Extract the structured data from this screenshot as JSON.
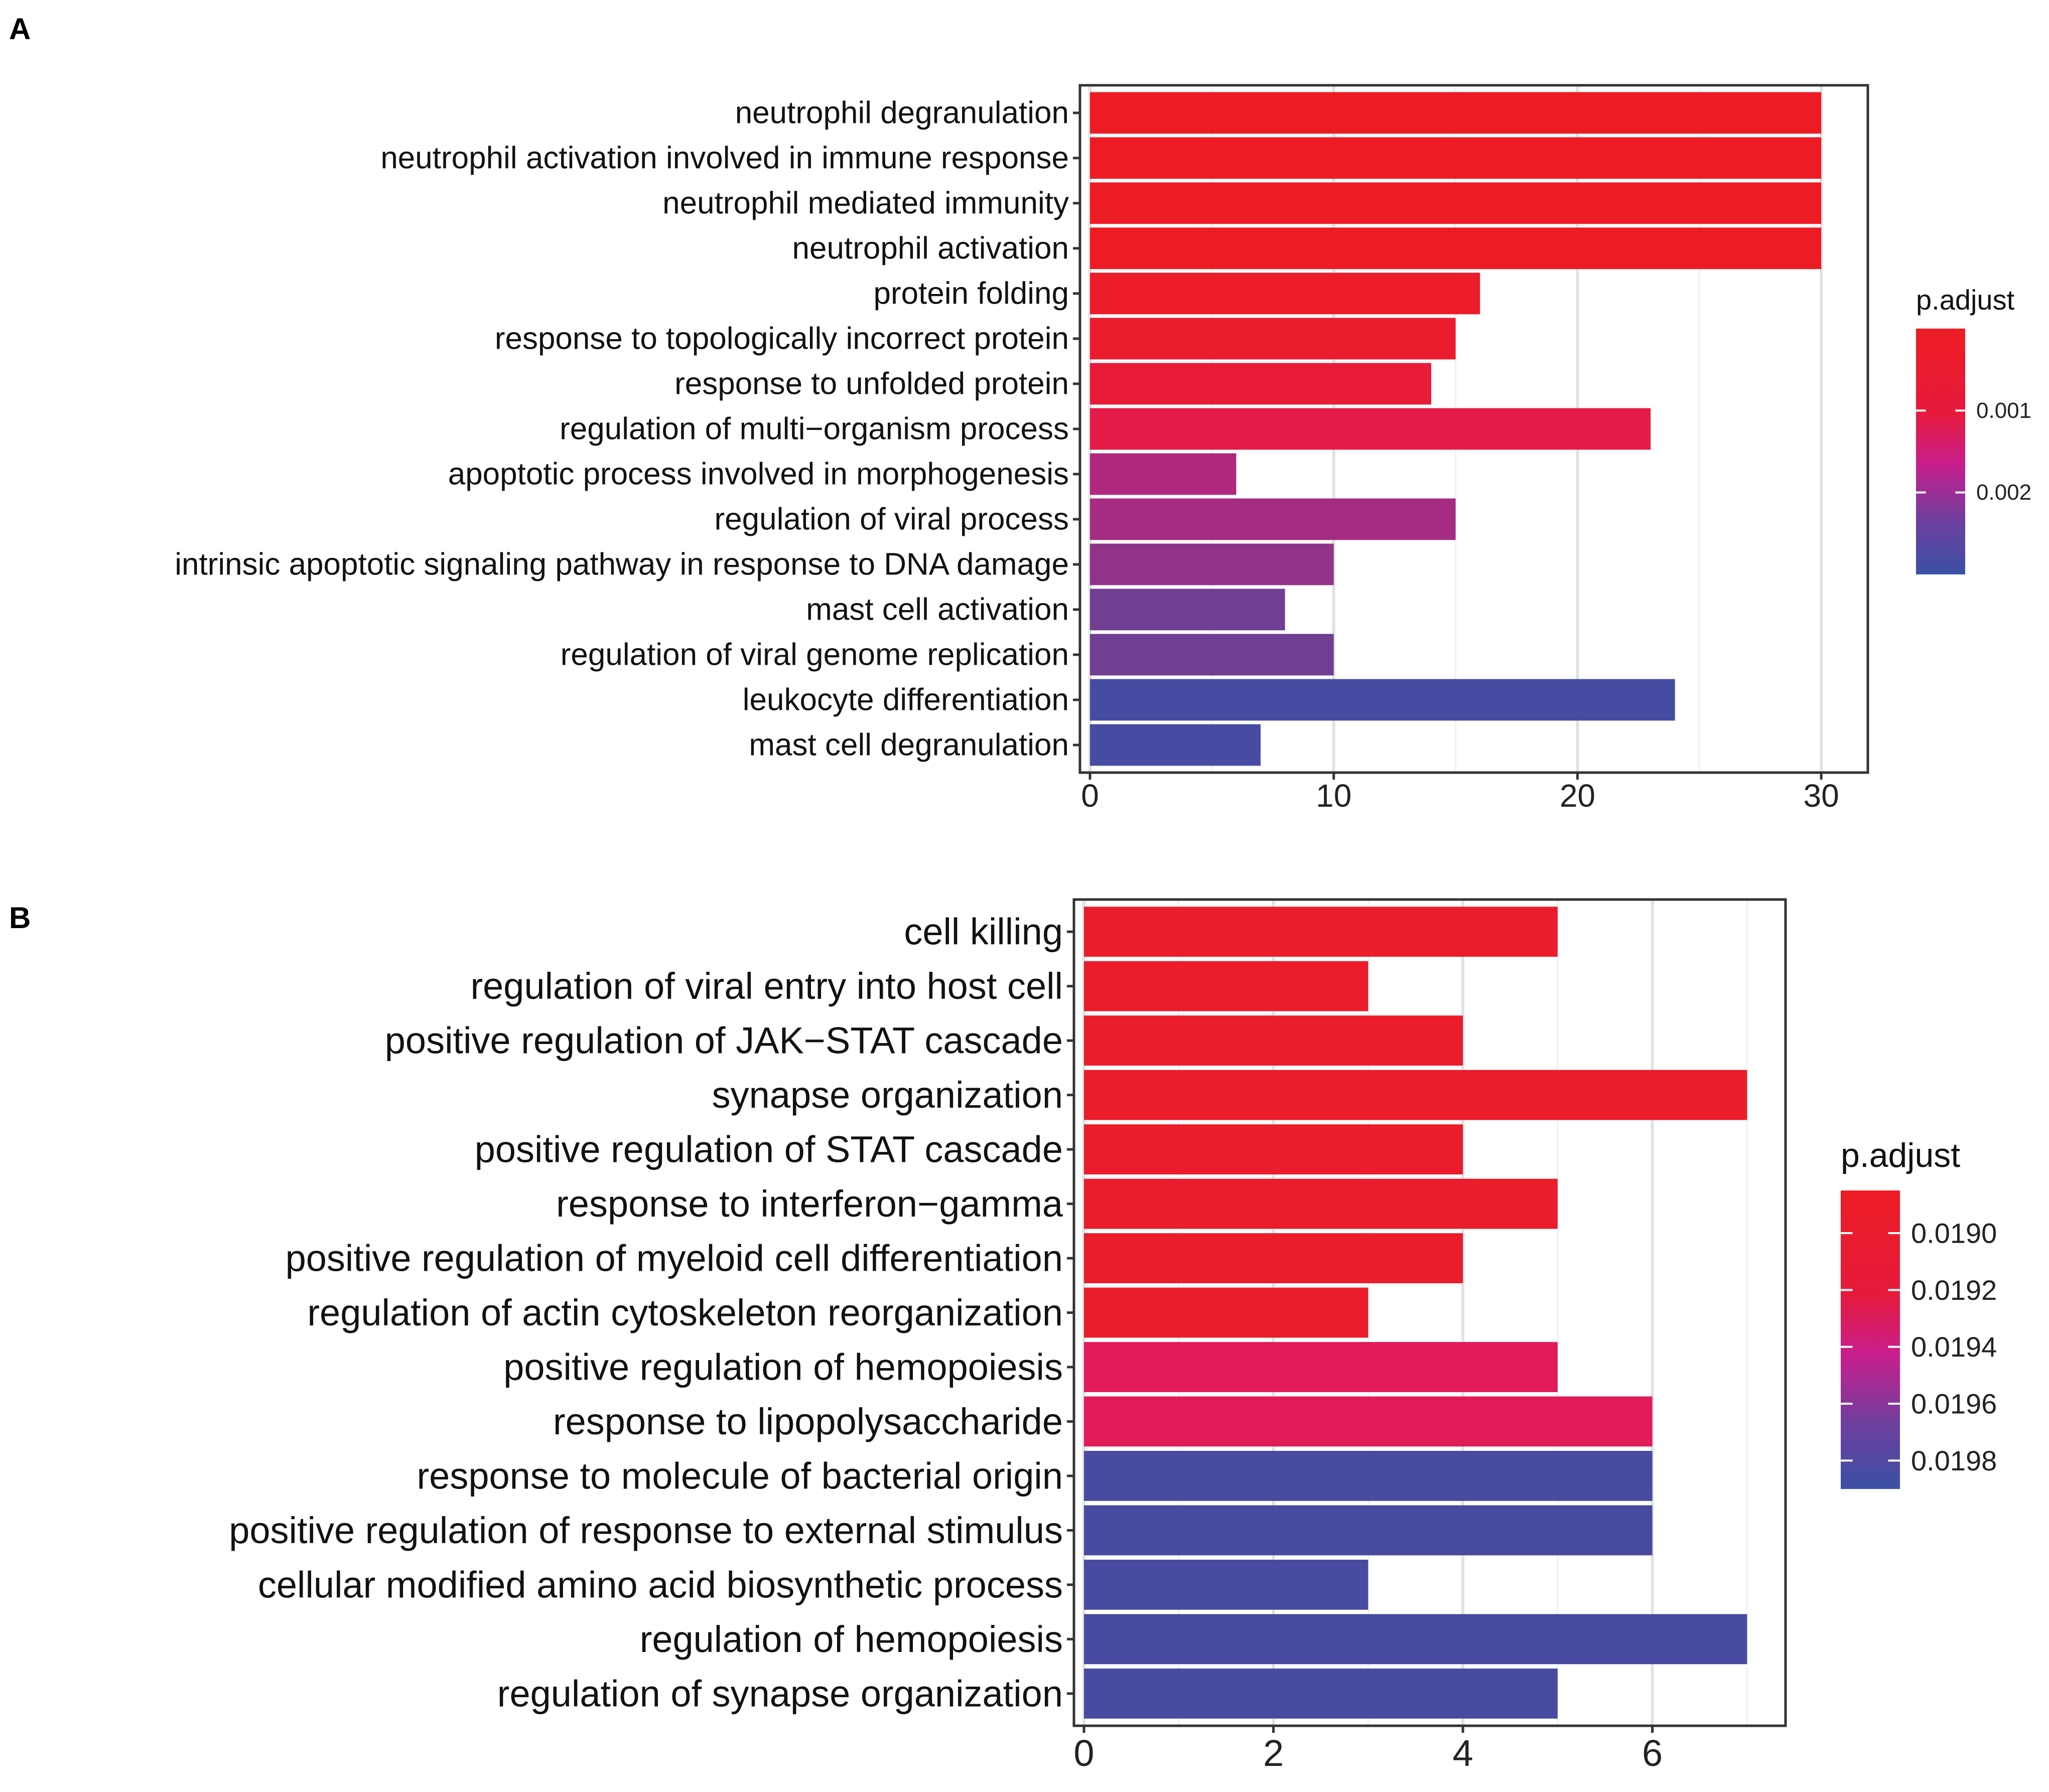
{
  "chart_data": [
    {
      "panel": "A",
      "type": "bar",
      "orientation": "horizontal",
      "categories": [
        "neutrophil degranulation",
        "neutrophil activation involved in immune response",
        "neutrophil mediated immunity",
        "neutrophil activation",
        "protein folding",
        "response to topologically incorrect protein",
        "response to unfolded protein",
        "regulation of multi−organism process",
        "apoptotic process involved in morphogenesis",
        "regulation of viral process",
        "intrinsic apoptotic signaling pathway in response to DNA damage",
        "mast cell activation",
        "regulation of viral genome replication",
        "leukocyte differentiation",
        "mast cell degranulation"
      ],
      "values": [
        30,
        30,
        30,
        30,
        16,
        15,
        14,
        23,
        6,
        15,
        10,
        8,
        10,
        24,
        7
      ],
      "p_adjust": [
        0.0,
        0.0,
        0.0,
        0.0,
        0.0001,
        0.0002,
        0.0004,
        0.0007,
        0.0019,
        0.002,
        0.0022,
        0.0025,
        0.0025,
        0.0029,
        0.0029
      ],
      "xlim": [
        0,
        31.5
      ],
      "xticks": [
        "0",
        "10",
        "20",
        "30"
      ],
      "legend": {
        "title": "p.adjust",
        "ticks": [
          "0.001",
          "0.002"
        ],
        "range": [
          0.0,
          0.003
        ],
        "tick_values": [
          0.001,
          0.002
        ],
        "colors": {
          "low": "#ED1C24",
          "mid": "#DB1A70",
          "high": "#3A50A5"
        }
      }
    },
    {
      "panel": "B",
      "type": "bar",
      "orientation": "horizontal",
      "categories": [
        "cell killing",
        "regulation of viral entry into host cell",
        "positive regulation of JAK−STAT cascade",
        "synapse organization",
        "positive regulation of STAT cascade",
        "response to interferon−gamma",
        "positive regulation of myeloid cell differentiation",
        "regulation of actin cytoskeleton reorganization",
        "positive regulation of hemopoiesis",
        "response to lipopolysaccharide",
        "response to molecule of bacterial origin",
        "positive regulation of response to external stimulus",
        "cellular modified amino acid biosynthetic process",
        "regulation of hemopoiesis",
        "regulation of synapse organization"
      ],
      "values": [
        5,
        3,
        4,
        7,
        4,
        5,
        4,
        3,
        5,
        6,
        6,
        6,
        3,
        7,
        5
      ],
      "p_adjust": [
        0.0189,
        0.0189,
        0.0189,
        0.0189,
        0.0189,
        0.0189,
        0.0189,
        0.0189,
        0.0192,
        0.0192,
        0.01985,
        0.01985,
        0.01985,
        0.01985,
        0.01985
      ],
      "xlim": [
        0,
        7.3
      ],
      "xticks": [
        "0",
        "2",
        "4",
        "6"
      ],
      "legend": {
        "title": "p.adjust",
        "ticks": [
          "0.0190",
          "0.0192",
          "0.0194",
          "0.0196",
          "0.0198"
        ],
        "range": [
          0.01885,
          0.0199
        ],
        "tick_values": [
          0.019,
          0.0192,
          0.0194,
          0.0196,
          0.0198
        ],
        "colors": {
          "low": "#ED1C24",
          "mid": "#DB1A70",
          "high": "#3A50A5"
        }
      }
    }
  ],
  "panels": {
    "a_label": "A",
    "b_label": "B"
  }
}
